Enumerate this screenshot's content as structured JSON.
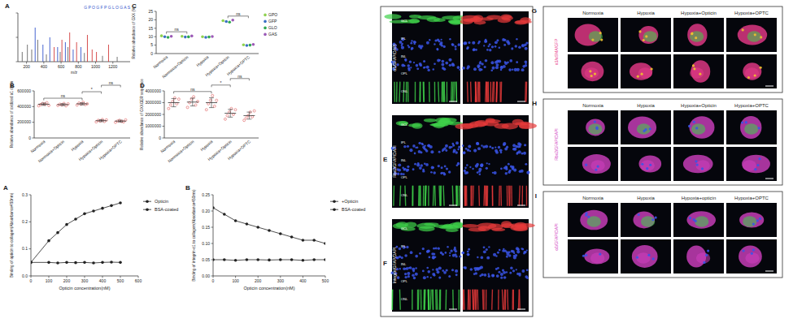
{
  "chart_data": [
    {
      "type": "spectrum",
      "title": "A",
      "subtitle": "G P O G F P G L O G A S",
      "x_label": "m/z",
      "xlim": [
        100,
        1400
      ],
      "xticks": [
        200,
        400,
        600,
        800,
        1000,
        1200
      ],
      "ylim": [
        0,
        100
      ],
      "yticks": [
        0,
        50,
        100
      ],
      "tick_labels": "x",
      "series": [
        {
          "color": "#d23b3b",
          "x": [
            520,
            610,
            700,
            780,
            905,
            960,
            1010,
            1150
          ],
          "values": [
            30,
            45,
            60,
            40,
            55,
            25,
            20,
            35
          ]
        },
        {
          "color": "#3355cc",
          "x": [
            300,
            390,
            470,
            560,
            650,
            740,
            830
          ],
          "values": [
            70,
            35,
            50,
            30,
            40,
            25,
            30
          ]
        },
        {
          "color": "#666666",
          "x": [
            150,
            210,
            260,
            330,
            430,
            590,
            680,
            870,
            1080,
            1250
          ],
          "values": [
            20,
            35,
            25,
            45,
            15,
            20,
            30,
            18,
            12,
            10
          ]
        }
      ]
    },
    {
      "type": "dot",
      "title": "C",
      "y_label": "Relative abundance of GXX (%)",
      "categories": [
        "Normoxia",
        "Normoxia+Opticin",
        "Hypoxia",
        "Hypoxia+Opticin",
        "Hypoxia+OPTC"
      ],
      "ylim": [
        0,
        25
      ],
      "yticks": [
        0,
        5,
        10,
        15,
        20,
        25
      ],
      "legend": "right",
      "series": [
        {
          "name": "GPO",
          "color": "#8fd14f",
          "values": [
            10.5,
            10.2,
            10.0,
            19.5,
            5.2
          ]
        },
        {
          "name": "GFP",
          "color": "#3a6fc4",
          "values": [
            10.0,
            9.8,
            9.6,
            19.0,
            4.8
          ]
        },
        {
          "name": "GLO",
          "color": "#2fa84f",
          "values": [
            9.6,
            9.9,
            9.8,
            18.6,
            5.0
          ]
        },
        {
          "name": "GAS",
          "color": "#9b59b6",
          "values": [
            10.2,
            10.4,
            10.1,
            19.8,
            5.4
          ]
        }
      ],
      "comparisons": [
        {
          "between": [
            "Normoxia",
            "Normoxia+Opticin"
          ],
          "label": "ns"
        },
        {
          "between": [
            "Hypoxia+Opticin",
            "Hypoxia+OPTC"
          ],
          "label": "ns"
        }
      ]
    },
    {
      "type": "dot",
      "title": "B",
      "y_label": "Relative abundance of oxidized α1 chain",
      "categories": [
        "Normoxia",
        "Normoxia+Opticin",
        "Hypoxia",
        "Hypoxia+Opticin",
        "Hypoxia+OPTC"
      ],
      "ylim": [
        0,
        600000
      ],
      "yticks": [
        0,
        200000,
        400000,
        600000
      ],
      "color": "#e05a5a",
      "values": [
        430000,
        425000,
        435000,
        220000,
        215000
      ],
      "errors": [
        15000,
        12000,
        13000,
        12000,
        12000
      ],
      "replicates": [
        [
          410000,
          425000,
          440000,
          430000,
          450000,
          415000
        ],
        [
          415000,
          430000,
          420000,
          440000,
          410000,
          435000
        ],
        [
          420000,
          445000,
          430000,
          455000,
          425000,
          435000
        ],
        [
          205000,
          225000,
          215000,
          235000,
          210000,
          230000
        ],
        [
          200000,
          215000,
          225000,
          210000,
          205000,
          230000
        ]
      ],
      "comparisons": [
        {
          "between": [
            "Normoxia",
            "Hypoxia"
          ],
          "label": "ns"
        },
        {
          "between": [
            "Hypoxia",
            "Hypoxia+Opticin"
          ],
          "label": "*"
        },
        {
          "between": [
            "Hypoxia+Opticin",
            "Hypoxia+OPTC"
          ],
          "label": "ns"
        }
      ]
    },
    {
      "type": "dot",
      "title": "D",
      "y_label": "Relative abundance of GXXGER sequence",
      "categories": [
        "Normoxia",
        "Normoxia+Opticin",
        "Hypoxia",
        "Hypoxia+Opticin",
        "Hypoxia+OPTC"
      ],
      "ylim": [
        0,
        4000000
      ],
      "yticks": [
        0,
        1000000,
        2000000,
        3000000,
        4000000
      ],
      "color": "#e05a5a",
      "values": [
        3000000,
        3050000,
        3000000,
        2100000,
        1900000
      ],
      "errors": [
        350000,
        330000,
        420000,
        330000,
        300000
      ],
      "replicates": [
        [
          2500000,
          2800000,
          3100000,
          3400000,
          2900000,
          3300000
        ],
        [
          2600000,
          3000000,
          3300000,
          3500000,
          2800000,
          3100000
        ],
        [
          2400000,
          2900000,
          3200000,
          3600000,
          2700000,
          3200000
        ],
        [
          1600000,
          1900000,
          2200000,
          2500000,
          2000000,
          2400000
        ],
        [
          1500000,
          1700000,
          1900000,
          2200000,
          1800000,
          2300000
        ]
      ],
      "comparisons": [
        {
          "between": [
            "Normoxia",
            "Hypoxia"
          ],
          "label": "ns"
        },
        {
          "between": [
            "Hypoxia",
            "Hypoxia+Opticin"
          ],
          "label": "*"
        },
        {
          "between": [
            "Hypoxia+Opticin",
            "Hypoxia+OPTC"
          ],
          "label": "ns"
        }
      ]
    },
    {
      "type": "line",
      "title": "A",
      "x_label": "Opticin concentration(nM)",
      "y_label": "Binding of opticin to collagen(Absorbance450nm)",
      "xlim": [
        0,
        600
      ],
      "xticks": [
        0,
        100,
        200,
        300,
        400,
        500,
        600
      ],
      "ylim": [
        0,
        0.3
      ],
      "yticks": [
        {
          "value": 0,
          "label": "0.0"
        },
        0.1,
        0.2,
        0.3
      ],
      "legend": "right",
      "x": [
        0,
        100,
        150,
        200,
        250,
        300,
        350,
        400,
        450,
        500
      ],
      "series": [
        {
          "name": "Opticin",
          "color": "#222222",
          "marker": "circle",
          "line_style": "solid",
          "values": [
            0.05,
            0.13,
            0.16,
            0.19,
            0.21,
            0.23,
            0.24,
            0.25,
            0.26,
            0.27
          ]
        },
        {
          "name": "BSA-coated",
          "color": "#222222",
          "marker": "circle",
          "line_style": "solid",
          "values": [
            0.05,
            0.05,
            0.048,
            0.05,
            0.049,
            0.05,
            0.048,
            0.05,
            0.051,
            0.05
          ]
        }
      ]
    },
    {
      "type": "line",
      "title": "B",
      "x_label": "Opticin concentration(nM)",
      "y_label": "Binding of integrin-α1 to collagen(Absorbance450nm)",
      "xlim": [
        0,
        500
      ],
      "xticks": [
        0,
        100,
        200,
        300,
        400,
        500
      ],
      "ylim": [
        0,
        0.25
      ],
      "yticks": [
        {
          "value": 0,
          "label": "0.00"
        },
        0.05,
        {
          "value": 0.1,
          "label": "0.10"
        },
        0.15,
        {
          "value": 0.2,
          "label": "0.20"
        },
        0.25
      ],
      "legend": "right",
      "x": [
        0,
        50,
        100,
        150,
        200,
        250,
        300,
        350,
        400,
        450,
        500
      ],
      "series": [
        {
          "name": "+Opticin",
          "color": "#222222",
          "marker": "circle",
          "line_style": "solid",
          "values": [
            0.21,
            0.19,
            0.17,
            0.16,
            0.15,
            0.14,
            0.13,
            0.12,
            0.11,
            0.11,
            0.1
          ]
        },
        {
          "name": "BSA-coated",
          "color": "#222222",
          "marker": "circle",
          "line_style": "solid",
          "values": [
            0.05,
            0.05,
            0.048,
            0.05,
            0.05,
            0.049,
            0.05,
            0.05,
            0.048,
            0.05,
            0.05
          ]
        }
      ]
    }
  ],
  "image_panels": [
    {
      "layers": [
        "GCL",
        "IPL",
        "INL",
        "OPL",
        "ONL"
      ],
      "rows": [
        {
          "stain": "α1/GFAP/DAPI",
          "colors": [
            "#e83a3a",
            "#3fd14a",
            "#3a55e8"
          ]
        },
        {
          "label": "E",
          "stain": "Rbx2/GFAP/DAPI",
          "colors": [
            "#e83a3a",
            "#3fd14a",
            "#3a55e8"
          ]
        },
        {
          "label": "F",
          "stain": "Integrin/GFAP/DAPI",
          "colors": [
            "#e83a3a",
            "#3fd14a",
            "#3a55e8"
          ]
        }
      ]
    },
    {
      "rows": [
        {
          "label": "G",
          "stain": "α1/αSMA/GFP",
          "columns": [
            "Normoxia",
            "Hypoxia",
            "Hypoxia+Opticin",
            "Hypoxia+OPTC"
          ],
          "colors": [
            "#e83a8a",
            "#3fd14a",
            "#f0c030"
          ]
        },
        {
          "label": "H",
          "stain": "Rbx2/GFAP/DAPI",
          "columns": [
            "Normoxia",
            "Hypoxia",
            "Hypoxia+Opticin",
            "Hypoxia+OPTC"
          ],
          "colors": [
            "#d040c0",
            "#3fd14a",
            "#3a55e8"
          ]
        },
        {
          "label": "I",
          "stain": "α1/GFAP/DAPI",
          "columns": [
            "Normoxia",
            "Hypoxia",
            "Hypoxia+opticin",
            "Hypoxia+OPTC"
          ],
          "colors": [
            "#d040c0",
            "#3fd14a",
            "#3a55e8"
          ]
        }
      ]
    }
  ]
}
